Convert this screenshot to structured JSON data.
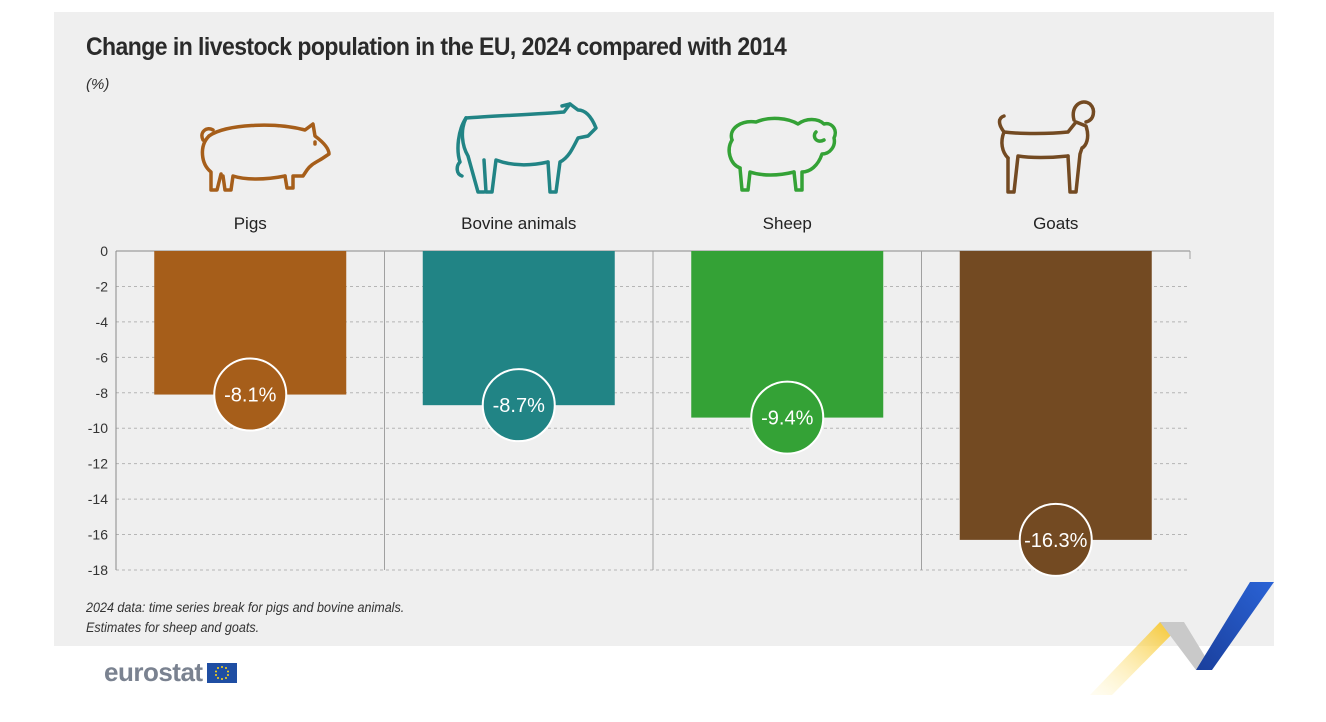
{
  "title": "Change in livestock population in the EU, 2024 compared with 2014",
  "unit": "(%)",
  "footnotes": [
    "2024 data: time series break for pigs and bovine animals.",
    "Estimates for sheep and goats."
  ],
  "brand": {
    "name": "eurostat"
  },
  "icons": [
    "pig-icon",
    "cow-icon",
    "sheep-icon",
    "goat-icon"
  ],
  "chart_data": {
    "type": "bar",
    "title": "Change in livestock population in the EU, 2024 compared with 2014",
    "ylabel": "(%)",
    "xlabel": "",
    "categories": [
      "Pigs",
      "Bovine animals",
      "Sheep",
      "Goats"
    ],
    "values": [
      -8.1,
      -8.7,
      -9.4,
      -16.3
    ],
    "data_labels": [
      "-8.1%",
      "-8.7%",
      "-9.4%",
      "-16.3%"
    ],
    "colors": [
      "#a65e1a",
      "#218485",
      "#34a236",
      "#734a22"
    ],
    "ylim": [
      -18,
      0
    ],
    "yticks": [
      0,
      -2,
      -4,
      -6,
      -8,
      -10,
      -12,
      -14,
      -16,
      -18
    ],
    "grid": true,
    "category_labels_position": "top"
  }
}
